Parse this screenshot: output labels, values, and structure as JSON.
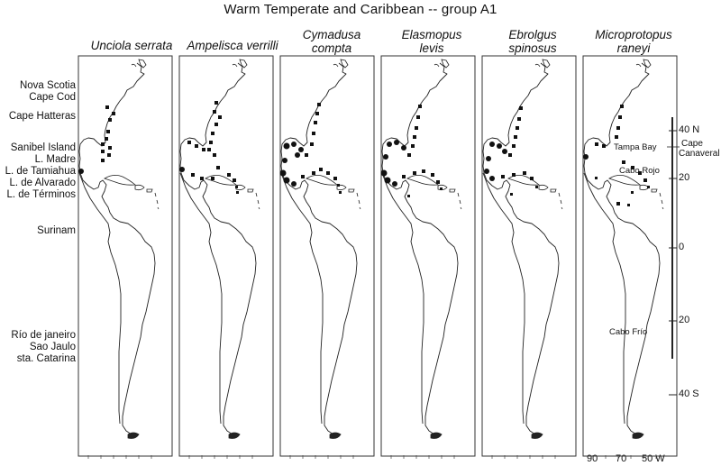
{
  "title": "Warm Temperate and Caribbean -- group A1",
  "species": [
    {
      "line1": "Unciola serrata",
      "line2": ""
    },
    {
      "line1": "Ampelisca verrilli",
      "line2": ""
    },
    {
      "line1": "Cymadusa",
      "line2": "compta"
    },
    {
      "line1": "Elasmopus",
      "line2": "levis"
    },
    {
      "line1": "Ebrolgus",
      "line2": "spinosus"
    },
    {
      "line1": "Microprotopus",
      "line2": "raneyi"
    }
  ],
  "locations_left": [
    "Nova Scotia",
    "Cape Cod",
    "Cape Hatteras",
    "Sanibel Island",
    "L. Madre",
    "L. de Tamiahua",
    "L. de Alvarado",
    "L. de Términos",
    "Surinam",
    "Río de janeiro",
    "Sao Jaulo",
    "sta. Catarina"
  ],
  "locations_map": [
    "Tampa Bay",
    "Cabo Rojo",
    "Cabo Frío"
  ],
  "locations_right": [
    "Cape",
    "Canaveral"
  ],
  "latitude_labels": [
    "40 N",
    "20",
    "0",
    "20",
    "40 S"
  ],
  "longitude_labels": [
    "90",
    "70",
    "50 W"
  ],
  "colors": {
    "marker": "#111111",
    "coast": "#222222",
    "frame": "#333333"
  }
}
